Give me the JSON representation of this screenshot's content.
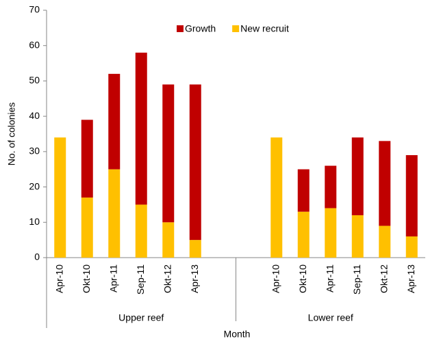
{
  "chart_data": {
    "type": "bar",
    "stacked": true,
    "x_label": "Month",
    "y_label": "No. of colonies",
    "categories": [
      "Apr-10",
      "Okt-10",
      "Apr-11",
      "Sep-11",
      "Okt-12",
      "Apr-13",
      null,
      null,
      "Apr-10",
      "Okt-10",
      "Apr-11",
      "Sep-11",
      "Okt-12",
      "Apr-13"
    ],
    "groups": [
      {
        "name": "Upper reef",
        "count": 7
      },
      {
        "name": "Lower reef",
        "count": 7
      }
    ],
    "series": [
      {
        "name": "Growth",
        "color": "#c00000",
        "values": [
          0,
          22,
          27,
          43,
          39,
          44,
          null,
          null,
          0,
          12,
          12,
          22,
          24,
          23
        ]
      },
      {
        "name": "New recruit",
        "color": "#ffc000",
        "values": [
          34,
          17,
          25,
          15,
          10,
          5,
          null,
          null,
          34,
          13,
          14,
          12,
          9,
          6
        ]
      }
    ],
    "ylim": [
      0,
      70
    ],
    "yticks": [
      0,
      10,
      20,
      30,
      40,
      50,
      60,
      70
    ],
    "legend": "top"
  }
}
